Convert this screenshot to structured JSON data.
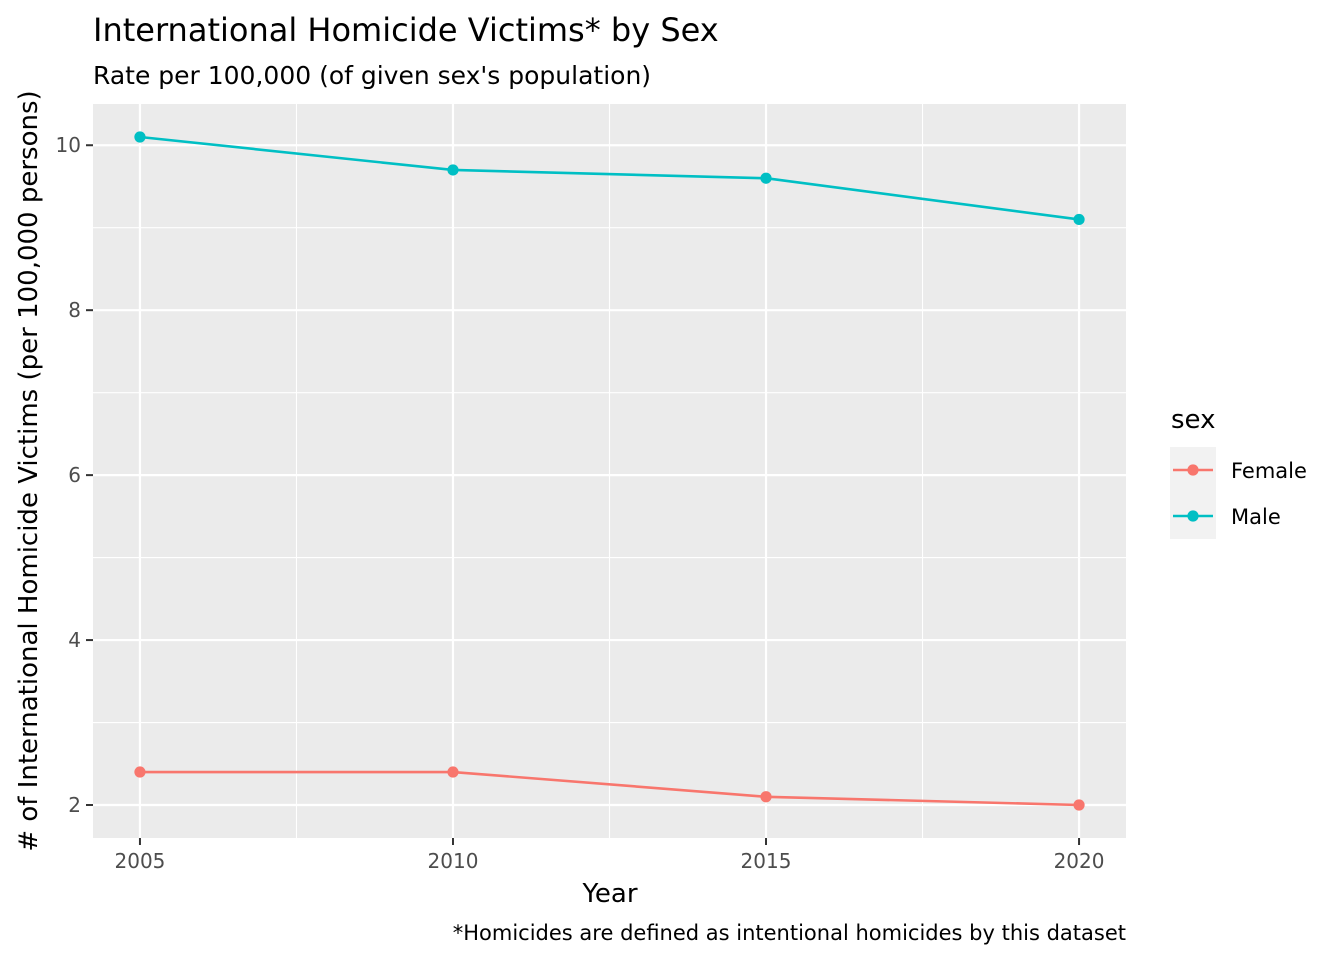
{
  "chart_data": {
    "type": "line",
    "title": "International Homicide Victims* by Sex",
    "subtitle": "Rate per 100,000 (of given sex's population)",
    "xlabel": "Year",
    "ylabel": "# of International Homicide Victims (per 100,000 persons)",
    "caption": "*Homicides are defined as intentional homicides by this dataset",
    "x": [
      2005,
      2010,
      2015,
      2020
    ],
    "x_ticks": [
      "2005",
      "2010",
      "2015",
      "2020"
    ],
    "y_ticks": [
      "2",
      "4",
      "6",
      "8",
      "10"
    ],
    "xlim": [
      2004.25,
      2020.75
    ],
    "ylim": [
      1.6,
      10.5
    ],
    "grid": true,
    "legend": {
      "title": "sex",
      "position": "right",
      "entries": [
        "Female",
        "Male"
      ]
    },
    "series": [
      {
        "name": "Female",
        "color": "#F8766D",
        "values": [
          2.4,
          2.4,
          2.1,
          2.0
        ]
      },
      {
        "name": "Male",
        "color": "#00BFC4",
        "values": [
          10.1,
          9.7,
          9.6,
          9.1
        ]
      }
    ]
  }
}
